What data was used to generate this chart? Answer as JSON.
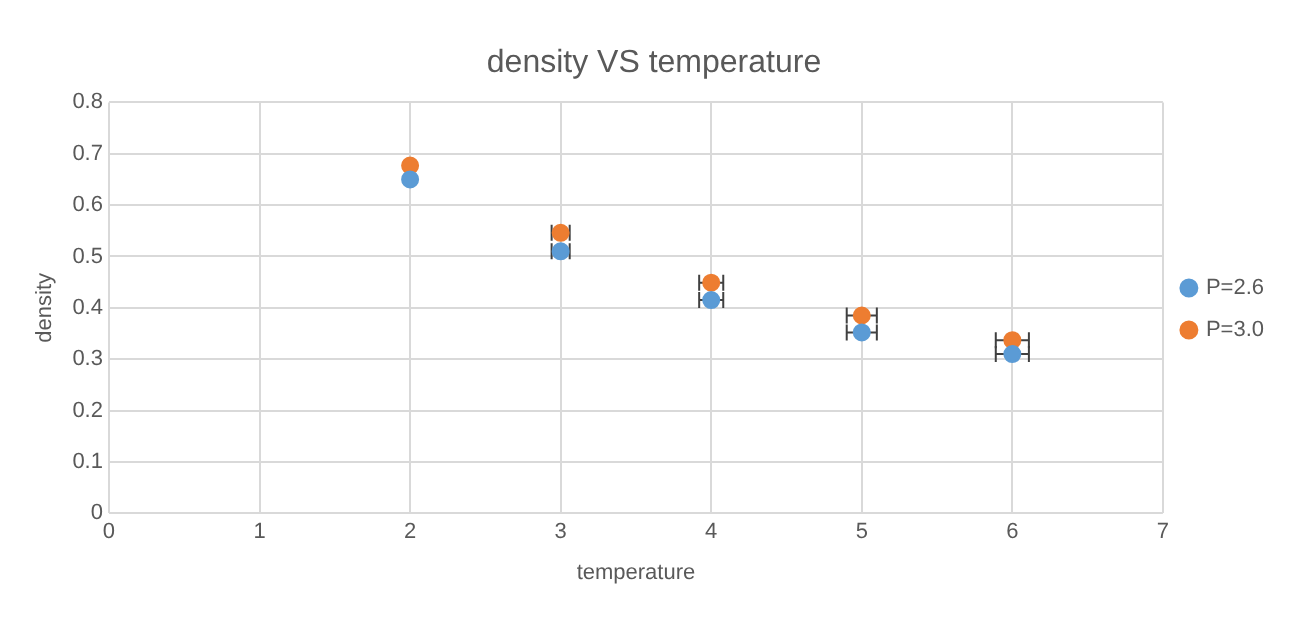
{
  "chart_data": {
    "type": "scatter",
    "title": "density VS temperature",
    "xlabel": "temperature",
    "ylabel": "density",
    "xlim": [
      0,
      7
    ],
    "xticks": [
      0,
      1,
      2,
      3,
      4,
      5,
      6,
      7
    ],
    "ylim": [
      0,
      0.8
    ],
    "yticks": [
      0,
      0.1,
      0.2,
      0.3,
      0.4,
      0.5,
      0.6,
      0.7,
      0.8
    ],
    "grid": true,
    "legend": "right",
    "marker": "circle",
    "series": [
      {
        "name": "P=2.6",
        "color": "#5b9bd5",
        "x": [
          2,
          3,
          4,
          5,
          6
        ],
        "values": [
          0.65,
          0.51,
          0.415,
          0.352,
          0.31
        ],
        "xerrors": [
          null,
          0.06,
          0.08,
          0.1,
          0.11
        ]
      },
      {
        "name": "P=3.0",
        "color": "#ed7d31",
        "x": [
          2,
          3,
          4,
          5,
          6
        ],
        "values": [
          0.677,
          0.546,
          0.449,
          0.385,
          0.337
        ],
        "xerrors": [
          null,
          0.06,
          0.08,
          0.1,
          0.11
        ]
      }
    ]
  }
}
